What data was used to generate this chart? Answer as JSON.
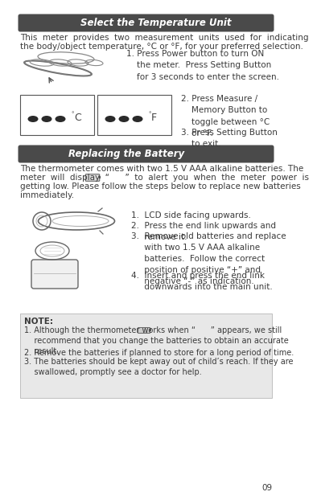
{
  "bg_color": "#ffffff",
  "section1_header": "Select the Temperature Unit",
  "section1_header_bg": "#4a4a4a",
  "section1_header_color": "#ffffff",
  "body1_line1": "This  meter  provides  two  measurement  units  used  for  indicating",
  "body1_line2": "the body/object temperature, °C or °F, for your preferred selection.",
  "step1_text": "1. Press Power button to turn ON\n    the meter.  Press Setting Button\n    for 3 seconds to enter the screen.",
  "step2_text": "2. Press Measure /\n    Memory Button to\n    toggle between °C\n    or °F.",
  "step3_text": "3. Press Setting Button\n    to exit.",
  "section2_header": "Replacing the Battery",
  "section2_header_bg": "#4a4a4a",
  "section2_header_color": "#ffffff",
  "body2_line1": "The thermometer comes with two 1.5 V AAA alkaline batteries. The",
  "body2_line2": "meter  will  display  “      ”  to  alert  you  when  the  meter  power  is",
  "body2_line3": "getting low. Please follow the steps below to replace new batteries",
  "body2_line4": "immediately.",
  "battery_step1": "1.  LCD side facing upwards.",
  "battery_step2": "2.  Press the end link upwards and\n     remove it.",
  "battery_step3": "3.  Remove old batteries and replace\n     with two 1.5 V AAA alkaline\n     batteries.  Follow the correct\n     position of positive “+” and\n     negative “-” as indication.",
  "battery_step4": "4.  Insert and press the end link\n     downwards into the main unit.",
  "note_header": "NOTE:",
  "note1": "1. Although the thermometer works when “      ” appears, we still\n    recommend that you change the batteries to obtain an accurate\n    result.",
  "note2": "2. Remove the batteries if planned to store for a long period of time.",
  "note3": "3. The batteries should be kept away out of child’s reach. If they are\n    swallowed, promptly see a doctor for help.",
  "page_number": "09",
  "text_color": "#3a3a3a",
  "note_bg": "#e8e8e8",
  "body_fontsize": 7.5,
  "header_fontsize": 8.5,
  "note_fontsize": 7.0,
  "lm": 15,
  "rm": 328
}
